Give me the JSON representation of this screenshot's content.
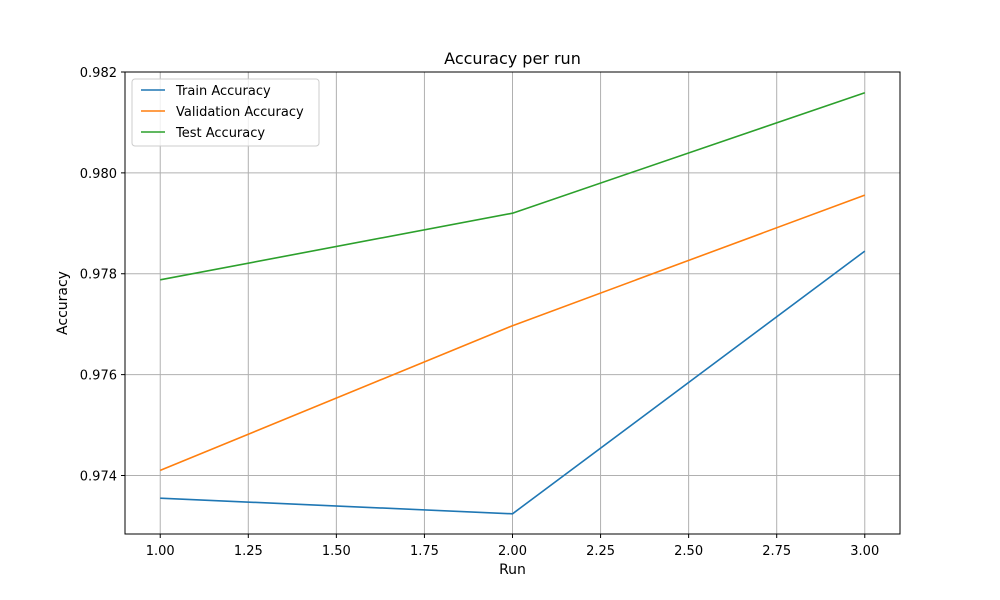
{
  "chart_data": {
    "type": "line",
    "title": "Accuracy per run",
    "xlabel": "Run",
    "ylabel": "Accuracy",
    "xlim": [
      0.9,
      3.1
    ],
    "ylim": [
      0.97284,
      0.982
    ],
    "x_ticks": [
      1.0,
      1.25,
      1.5,
      1.75,
      2.0,
      2.25,
      2.5,
      2.75,
      3.0
    ],
    "x_tick_labels": [
      "1.00",
      "1.25",
      "1.50",
      "1.75",
      "2.00",
      "2.25",
      "2.50",
      "2.75",
      "3.00"
    ],
    "y_ticks": [
      0.974,
      0.976,
      0.978,
      0.98,
      0.982
    ],
    "y_tick_labels": [
      "0.974",
      "0.976",
      "0.978",
      "0.980",
      "0.982"
    ],
    "grid": true,
    "legend_position": "upper-left",
    "x": [
      1,
      2,
      3
    ],
    "series": [
      {
        "name": "Train Accuracy",
        "color": "#1f77b4",
        "values": [
          0.97355,
          0.97324,
          0.97845
        ]
      },
      {
        "name": "Validation Accuracy",
        "color": "#ff7f0e",
        "values": [
          0.9741,
          0.97697,
          0.97956
        ]
      },
      {
        "name": "Test Accuracy",
        "color": "#2ca02c",
        "values": [
          0.97788,
          0.9792,
          0.98159
        ]
      }
    ]
  }
}
